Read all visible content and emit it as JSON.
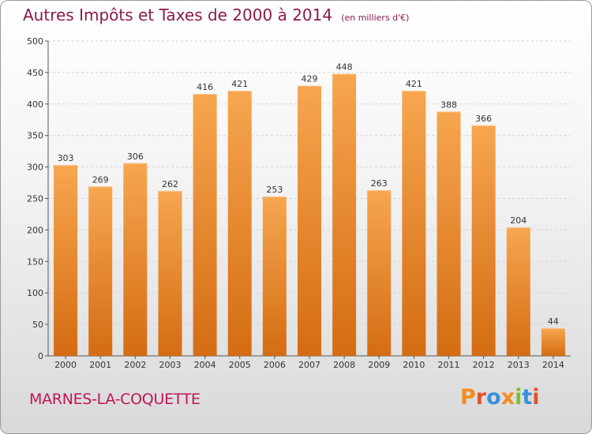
{
  "chart_data": {
    "type": "bar",
    "title": "Autres Impôts et Taxes de 2000 à 2014",
    "subtitle": "(en milliers d'€)",
    "categories": [
      "2000",
      "2001",
      "2002",
      "2003",
      "2004",
      "2005",
      "2006",
      "2007",
      "2008",
      "2009",
      "2010",
      "2011",
      "2012",
      "2013",
      "2014"
    ],
    "values": [
      303,
      269,
      306,
      262,
      416,
      421,
      253,
      429,
      448,
      263,
      421,
      388,
      366,
      204,
      44
    ],
    "ylim": [
      0,
      500
    ],
    "yticks": [
      0,
      50,
      100,
      150,
      200,
      250,
      300,
      350,
      400,
      450,
      500
    ],
    "grid": true,
    "legend": "none",
    "xlabel": "",
    "ylabel": ""
  },
  "footer": {
    "commune": "MARNES-LA-COQUETTE",
    "logo_text": "Proxiti"
  },
  "colors": {
    "bar_light": "#f7a24e",
    "bar_dark": "#d86f14",
    "title": "#8b1a4e",
    "commune": "#c0155a",
    "logo": [
      "#f28c1e",
      "#e0532d",
      "#3a8fd8",
      "#f28c1e",
      "#7bbf2a",
      "#3a8fd8",
      "#e0532d"
    ]
  }
}
